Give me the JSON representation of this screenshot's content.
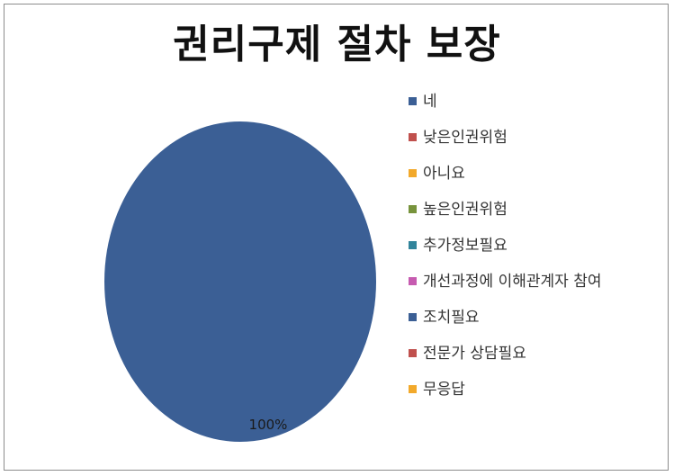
{
  "chart_data": {
    "type": "pie",
    "title": "권리구제 절차 보장",
    "categories": [
      "네",
      "낮은인권위험",
      "아니요",
      "높은인권위험",
      "추가정보필요",
      "개선과정에 이해관계자 참여",
      "조치필요",
      "전문가 상담필요",
      "무응답"
    ],
    "values": [
      100,
      0,
      0,
      0,
      0,
      0,
      0,
      0,
      0
    ],
    "data_labels": [
      "100%",
      "",
      "",
      "",
      "",
      "",
      "",
      "",
      ""
    ],
    "colors": [
      "#3b5f95",
      "#c0504d",
      "#f2a92b",
      "#77933c",
      "#31849b",
      "#c65bb0",
      "#3b5f95",
      "#c0504d",
      "#f2a92b"
    ],
    "legend_position": "right"
  }
}
